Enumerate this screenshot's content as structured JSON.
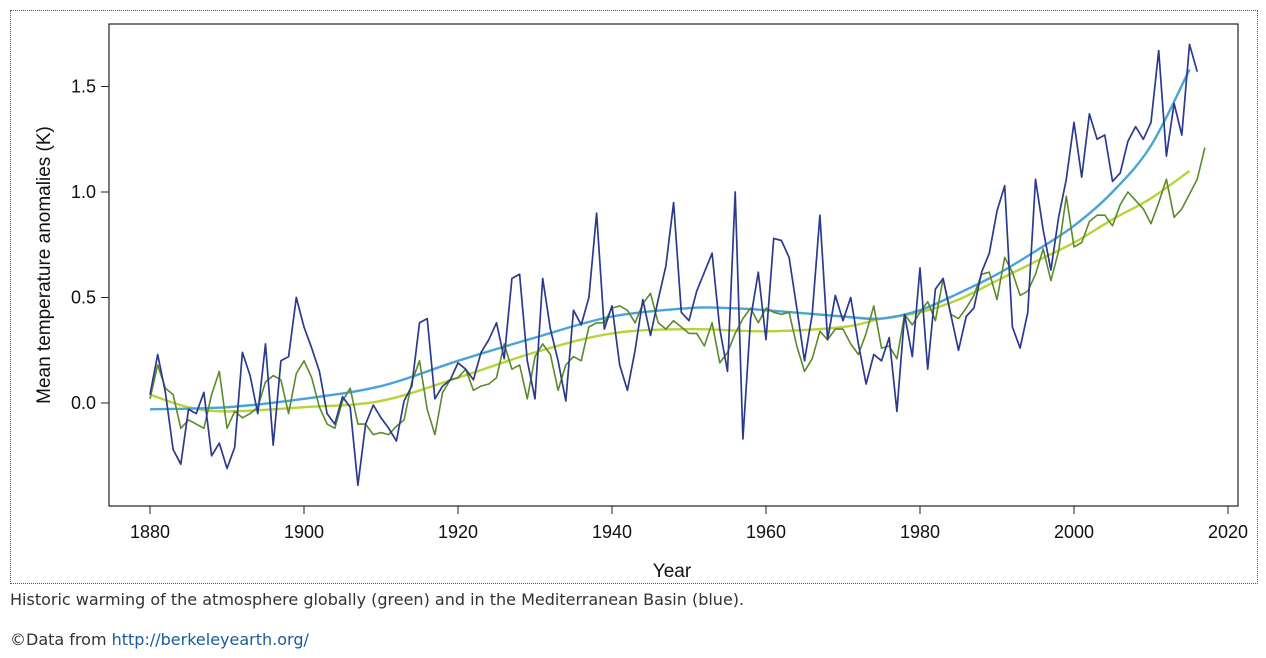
{
  "caption": "Historic warming of the atmosphere globally (green) and in the Mediterranean Basin (blue).",
  "credit": {
    "prefix": "©Data from ",
    "link_text": "http://berkeleyearth.org/"
  },
  "chart_data": {
    "type": "line",
    "title": "",
    "xlabel": "Year",
    "ylabel": "Mean temperature anomalies (K)",
    "xlim": [
      1880,
      2020
    ],
    "ylim": [
      -0.45,
      1.8
    ],
    "xticks": [
      1880,
      1900,
      1920,
      1940,
      1960,
      1980,
      2000,
      2020
    ],
    "yticks": [
      0.0,
      0.5,
      1.0,
      1.5
    ],
    "ytick_labels": [
      "0.0",
      "0.5",
      "1.0",
      "1.5"
    ],
    "grid": false,
    "legend": "none",
    "colors": {
      "mediterranean": "#2b3a8f",
      "global": "#5a8a2a",
      "mediterranean_smooth": "#4aa3d8",
      "global_smooth": "#b8d43a"
    },
    "series": [
      {
        "key": "mediterranean",
        "x_start": 1880,
        "values": [
          0.04,
          0.23,
          0.05,
          -0.22,
          -0.29,
          -0.03,
          -0.05,
          0.05,
          -0.25,
          -0.19,
          -0.31,
          -0.21,
          0.24,
          0.13,
          -0.05,
          0.28,
          -0.2,
          0.2,
          0.22,
          0.5,
          0.36,
          0.26,
          0.15,
          -0.05,
          -0.1,
          0.03,
          -0.02,
          -0.39,
          -0.1,
          -0.01,
          -0.07,
          -0.12,
          -0.18,
          0.01,
          0.08,
          0.38,
          0.4,
          0.02,
          0.08,
          0.11,
          0.19,
          0.16,
          0.11,
          0.24,
          0.3,
          0.38,
          0.21,
          0.59,
          0.61,
          0.2,
          0.02,
          0.59,
          0.35,
          0.2,
          0.01,
          0.44,
          0.37,
          0.5,
          0.9,
          0.35,
          0.46,
          0.18,
          0.06,
          0.25,
          0.49,
          0.32,
          0.49,
          0.65,
          0.95,
          0.43,
          0.39,
          0.53,
          0.62,
          0.71,
          0.35,
          0.15,
          1.0,
          -0.17,
          0.4,
          0.62,
          0.3,
          0.78,
          0.77,
          0.69,
          0.45,
          0.2,
          0.42,
          0.89,
          0.3,
          0.51,
          0.39,
          0.5,
          0.28,
          0.09,
          0.23,
          0.2,
          0.31,
          -0.04,
          0.42,
          0.22,
          0.64,
          0.16,
          0.54,
          0.59,
          0.42,
          0.25,
          0.41,
          0.45,
          0.62,
          0.71,
          0.91,
          1.03,
          0.36,
          0.26,
          0.43,
          1.06,
          0.82,
          0.63,
          0.88,
          1.06,
          1.33,
          1.07,
          1.37,
          1.25,
          1.27,
          1.05,
          1.09,
          1.24,
          1.31,
          1.25,
          1.33,
          1.67,
          1.17,
          1.42,
          1.27,
          1.7,
          1.57
        ]
      },
      {
        "key": "global",
        "x_start": 1880,
        "values": [
          0.02,
          0.18,
          0.07,
          0.04,
          -0.12,
          -0.08,
          -0.1,
          -0.12,
          0.04,
          0.15,
          -0.12,
          -0.04,
          -0.07,
          -0.05,
          -0.02,
          0.1,
          0.13,
          0.11,
          -0.05,
          0.14,
          0.2,
          0.12,
          -0.02,
          -0.1,
          -0.12,
          0.01,
          0.07,
          -0.1,
          -0.1,
          -0.15,
          -0.14,
          -0.15,
          -0.11,
          -0.08,
          0.1,
          0.2,
          -0.03,
          -0.15,
          0.05,
          0.11,
          0.12,
          0.16,
          0.06,
          0.08,
          0.09,
          0.12,
          0.28,
          0.16,
          0.18,
          0.02,
          0.22,
          0.28,
          0.23,
          0.06,
          0.18,
          0.22,
          0.2,
          0.36,
          0.38,
          0.38,
          0.45,
          0.46,
          0.44,
          0.38,
          0.47,
          0.52,
          0.38,
          0.35,
          0.39,
          0.36,
          0.33,
          0.33,
          0.27,
          0.38,
          0.19,
          0.24,
          0.33,
          0.4,
          0.45,
          0.38,
          0.45,
          0.43,
          0.42,
          0.43,
          0.27,
          0.15,
          0.21,
          0.34,
          0.3,
          0.35,
          0.35,
          0.28,
          0.23,
          0.33,
          0.46,
          0.26,
          0.27,
          0.21,
          0.42,
          0.37,
          0.43,
          0.48,
          0.39,
          0.59,
          0.42,
          0.4,
          0.45,
          0.51,
          0.61,
          0.62,
          0.49,
          0.69,
          0.62,
          0.51,
          0.53,
          0.61,
          0.73,
          0.58,
          0.72,
          0.98,
          0.74,
          0.76,
          0.86,
          0.89,
          0.89,
          0.84,
          0.94,
          1.0,
          0.96,
          0.92,
          0.85,
          0.95,
          1.06,
          0.88,
          0.92,
          0.99,
          1.06,
          1.21
        ]
      },
      {
        "key": "mediterranean_smooth",
        "x": [
          1880,
          1890,
          1900,
          1910,
          1920,
          1930,
          1940,
          1950,
          1955,
          1960,
          1970,
          1975,
          1980,
          1985,
          1990,
          1995,
          2000,
          2005,
          2010,
          2015
        ],
        "values": [
          -0.03,
          -0.02,
          0.02,
          0.08,
          0.2,
          0.31,
          0.41,
          0.45,
          0.45,
          0.44,
          0.41,
          0.4,
          0.44,
          0.52,
          0.61,
          0.72,
          0.84,
          1.0,
          1.22,
          1.58
        ]
      },
      {
        "key": "global_smooth",
        "x": [
          1880,
          1885,
          1890,
          1900,
          1910,
          1920,
          1930,
          1940,
          1950,
          1960,
          1970,
          1975,
          1980,
          1985,
          1990,
          1995,
          2000,
          2005,
          2010,
          2015
        ],
        "values": [
          0.04,
          -0.02,
          -0.04,
          -0.02,
          0.01,
          0.12,
          0.24,
          0.33,
          0.35,
          0.34,
          0.36,
          0.4,
          0.43,
          0.49,
          0.58,
          0.67,
          0.76,
          0.87,
          0.97,
          1.1
        ]
      }
    ]
  }
}
